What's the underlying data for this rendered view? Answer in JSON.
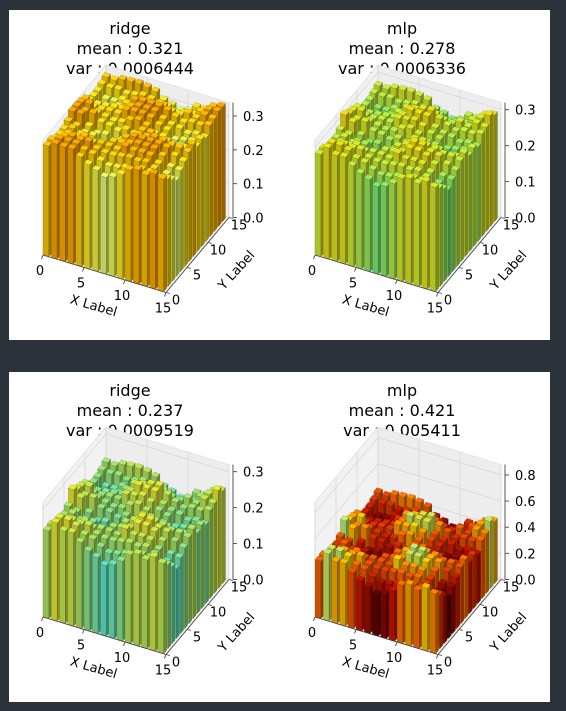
{
  "chart_data": [
    {
      "type": "bar3d",
      "title_lines": [
        "ridge",
        "mean :  0.321",
        "var :  0.0006444"
      ],
      "model": "ridge",
      "mean": 0.321,
      "var": 0.0006444,
      "xlabel": "X Label",
      "ylabel": "Y Label",
      "xticks": [
        "0",
        "5",
        "10",
        "15"
      ],
      "yticks": [
        "0",
        "5",
        "10",
        "15"
      ],
      "zticks": [
        "0.0",
        "0.1",
        "0.2",
        "0.3"
      ],
      "xlim": [
        0,
        15
      ],
      "ylim": [
        0,
        15
      ],
      "zlim": [
        0,
        0.34
      ],
      "colormap": "wistia-like",
      "grid": "15x15",
      "base_value": 0.321,
      "amplitude": 0.03
    },
    {
      "type": "bar3d",
      "title_lines": [
        "mlp",
        "mean :  0.278",
        "var :  0.0006336"
      ],
      "model": "mlp",
      "mean": 0.278,
      "var": 0.0006336,
      "xlabel": "X Label",
      "ylabel": "Y Label",
      "xticks": [
        "0",
        "5",
        "10",
        "15"
      ],
      "yticks": [
        "0",
        "5",
        "10",
        "15"
      ],
      "zticks": [
        "0.0",
        "0.1",
        "0.2",
        "0.3"
      ],
      "xlim": [
        0,
        15
      ],
      "ylim": [
        0,
        15
      ],
      "zlim": [
        0,
        0.32
      ],
      "colormap": "yellow-green",
      "grid": "15x15",
      "base_value": 0.278,
      "amplitude": 0.03
    },
    {
      "type": "bar3d",
      "title_lines": [
        "ridge",
        "mean :  0.237",
        "var :  0.0009519"
      ],
      "model": "ridge",
      "mean": 0.237,
      "var": 0.0009519,
      "xlabel": "X Label",
      "ylabel": "Y Label",
      "xticks": [
        "0",
        "5",
        "10",
        "15"
      ],
      "yticks": [
        "0",
        "5",
        "10",
        "15"
      ],
      "zticks": [
        "0.0",
        "0.1",
        "0.2",
        "0.3"
      ],
      "xlim": [
        0,
        15
      ],
      "ylim": [
        0,
        15
      ],
      "zlim": [
        0,
        0.32
      ],
      "colormap": "cyan-green-yellow",
      "grid": "15x15",
      "base_value": 0.237,
      "amplitude": 0.035
    },
    {
      "type": "bar3d",
      "title_lines": [
        "mlp",
        "mean :  0.421",
        "var :  0.005411"
      ],
      "model": "mlp",
      "mean": 0.421,
      "var": 0.005411,
      "xlabel": "X Label",
      "ylabel": "Y Label",
      "xticks": [
        "0",
        "5",
        "10",
        "15"
      ],
      "yticks": [
        "0",
        "5",
        "10",
        "15"
      ],
      "zticks": [
        "0.0",
        "0.2",
        "0.4",
        "0.6",
        "0.8"
      ],
      "xlim": [
        0,
        15
      ],
      "ylim": [
        0,
        15
      ],
      "zlim": [
        0,
        0.88
      ],
      "colormap": "hot",
      "grid": "15x15",
      "base_value": 0.421,
      "amplitude": 0.09
    }
  ],
  "colors": {
    "page_background": "#2b323a",
    "figure_background": "#ffffff",
    "pane_fill": "#f2f2f2",
    "grid_line": "#d6d6d6"
  }
}
